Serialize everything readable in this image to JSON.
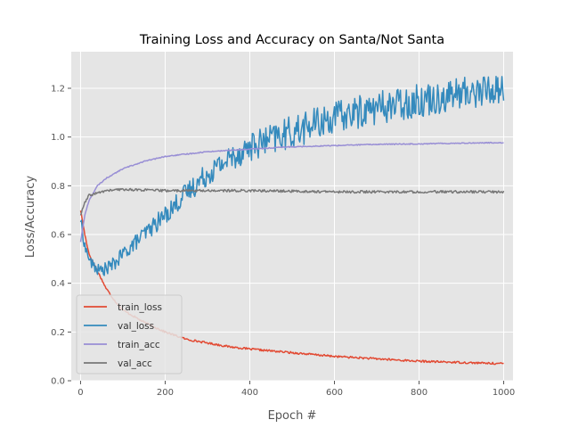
{
  "chart_data": {
    "type": "line",
    "title": "Training Loss and Accuracy on Santa/Not Santa",
    "xlabel": "Epoch #",
    "ylabel": "Loss/Accuracy",
    "xlim": [
      -22,
      1022
    ],
    "ylim": [
      0.0,
      1.35
    ],
    "xticks": [
      0,
      200,
      400,
      600,
      800,
      1000
    ],
    "yticks": [
      0.0,
      0.2,
      0.4,
      0.6,
      0.8,
      1.0,
      1.2
    ],
    "grid": true,
    "legend_position": "lower-left",
    "series": [
      {
        "name": "train_loss",
        "color": "#E24A33",
        "noise": 0.004,
        "points": [
          [
            0,
            0.7
          ],
          [
            10,
            0.6
          ],
          [
            20,
            0.52
          ],
          [
            40,
            0.45
          ],
          [
            60,
            0.38
          ],
          [
            80,
            0.33
          ],
          [
            100,
            0.29
          ],
          [
            150,
            0.24
          ],
          [
            200,
            0.2
          ],
          [
            250,
            0.17
          ],
          [
            300,
            0.155
          ],
          [
            350,
            0.14
          ],
          [
            400,
            0.13
          ],
          [
            500,
            0.115
          ],
          [
            600,
            0.1
          ],
          [
            700,
            0.09
          ],
          [
            800,
            0.08
          ],
          [
            900,
            0.075
          ],
          [
            1000,
            0.07
          ]
        ]
      },
      {
        "name": "val_loss",
        "color": "#348ABD",
        "noise": 0.02,
        "points": [
          [
            0,
            0.66
          ],
          [
            10,
            0.55
          ],
          [
            25,
            0.48
          ],
          [
            45,
            0.45
          ],
          [
            60,
            0.46
          ],
          [
            80,
            0.48
          ],
          [
            100,
            0.52
          ],
          [
            150,
            0.6
          ],
          [
            200,
            0.68
          ],
          [
            250,
            0.77
          ],
          [
            300,
            0.85
          ],
          [
            350,
            0.91
          ],
          [
            400,
            0.96
          ],
          [
            450,
            0.99
          ],
          [
            500,
            1.02
          ],
          [
            550,
            1.05
          ],
          [
            600,
            1.08
          ],
          [
            700,
            1.12
          ],
          [
            800,
            1.15
          ],
          [
            900,
            1.18
          ],
          [
            1000,
            1.2
          ]
        ]
      },
      {
        "name": "train_acc",
        "color": "#988ED5",
        "noise": 0.002,
        "points": [
          [
            0,
            0.57
          ],
          [
            10,
            0.68
          ],
          [
            20,
            0.74
          ],
          [
            40,
            0.8
          ],
          [
            60,
            0.83
          ],
          [
            80,
            0.85
          ],
          [
            100,
            0.87
          ],
          [
            150,
            0.9
          ],
          [
            200,
            0.92
          ],
          [
            250,
            0.93
          ],
          [
            300,
            0.94
          ],
          [
            400,
            0.95
          ],
          [
            500,
            0.96
          ],
          [
            600,
            0.965
          ],
          [
            700,
            0.97
          ],
          [
            800,
            0.972
          ],
          [
            900,
            0.975
          ],
          [
            1000,
            0.977
          ]
        ]
      },
      {
        "name": "val_acc",
        "color": "#777777",
        "noise": 0.005,
        "points": [
          [
            0,
            0.68
          ],
          [
            10,
            0.73
          ],
          [
            20,
            0.76
          ],
          [
            40,
            0.77
          ],
          [
            60,
            0.78
          ],
          [
            100,
            0.785
          ],
          [
            200,
            0.78
          ],
          [
            400,
            0.78
          ],
          [
            600,
            0.775
          ],
          [
            800,
            0.775
          ],
          [
            1000,
            0.775
          ]
        ]
      }
    ]
  }
}
